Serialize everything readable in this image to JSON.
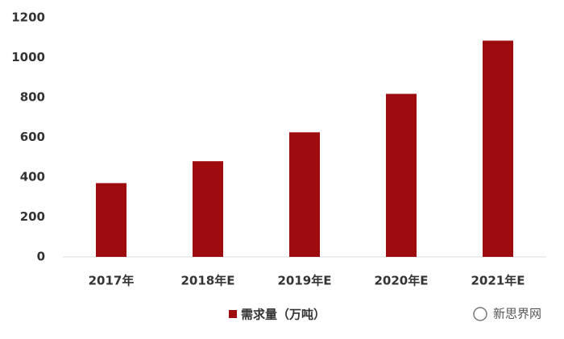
{
  "chart_data": {
    "type": "bar",
    "categories": [
      "2017年",
      "2018年E",
      "2019年E",
      "2020年E",
      "2021年E"
    ],
    "series": [
      {
        "name": "需求量（万吨）",
        "color": "#9e0b0f",
        "values": [
          370,
          480,
          625,
          818,
          1085
        ]
      }
    ],
    "ylim": [
      0,
      1200
    ],
    "yticks": [
      0,
      200,
      400,
      600,
      800,
      1000,
      1200
    ],
    "grid": false,
    "legend": "bottom"
  },
  "watermark": "新思界网"
}
